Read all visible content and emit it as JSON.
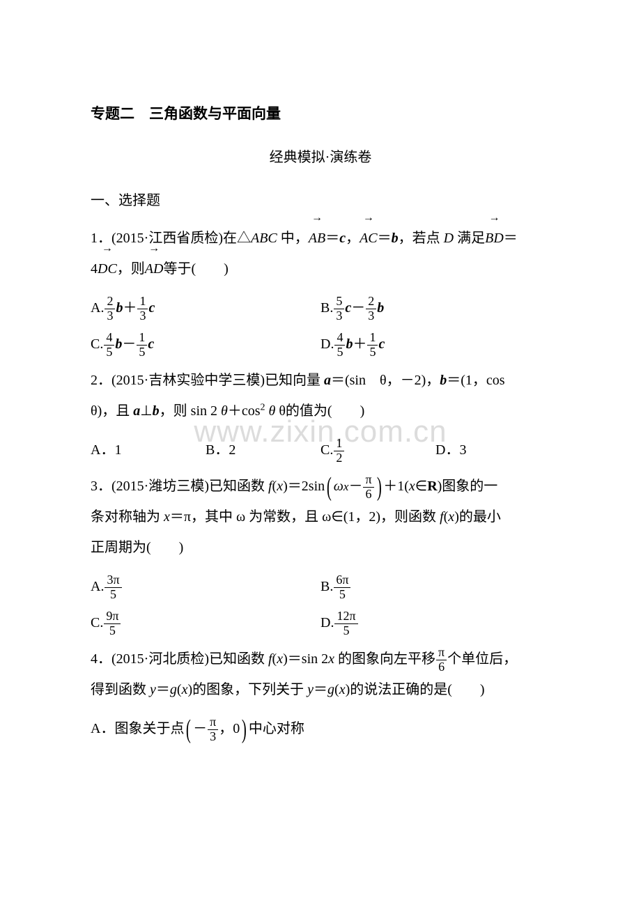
{
  "watermark": "www.zixin.com.cn",
  "title": "专题二　三角函数与平面向量",
  "subtitle": "经典模拟·演练卷",
  "section1": "一、选择题",
  "q1": {
    "prefix": "1．(2015·江西省质检)在△",
    "abc": "ABC",
    "mid1": " 中，",
    "eq1a": "AB",
    "eq1b": "＝",
    "eq1c": "c",
    "comma1": "，",
    "eq2a": "AC",
    "eq2b": "＝",
    "eq2c": "b",
    "comma2": "，若点 ",
    "D": "D",
    "mid2": " 满足",
    "eq3a": "BD",
    "eq3b": "＝",
    "line2a": "4",
    "eq4a": "DC",
    "line2b": "，则",
    "eq5a": "AD",
    "line2c": "等于(　　)",
    "optA": {
      "p": "A.",
      "n1": "2",
      "d1": "3",
      "v1": "b",
      "op": "＋",
      "n2": "1",
      "d2": "3",
      "v2": "c"
    },
    "optB": {
      "p": "B.",
      "n1": "5",
      "d1": "3",
      "v1": "c",
      "op": "－",
      "n2": "2",
      "d2": "3",
      "v2": "b"
    },
    "optC": {
      "p": "C.",
      "n1": "4",
      "d1": "5",
      "v1": "b",
      "op": "－",
      "n2": "1",
      "d2": "5",
      "v2": "c"
    },
    "optD": {
      "p": "D.",
      "n1": "4",
      "d1": "5",
      "v1": "b",
      "op": "＋",
      "n2": "1",
      "d2": "5",
      "v2": "c"
    }
  },
  "q2": {
    "line1a": "2．(2015·吉林实验中学三模)已知向量 ",
    "a": "a",
    "eq1": "＝(sin　θ，－2)，",
    "b": "b",
    "eq2": "＝(1，cos",
    "line2a": " θ)，且 ",
    "perp": "⊥",
    "line2b": "，则 sin 2",
    "theta": " θ",
    "plus": "＋cos",
    "sq": "2",
    "line2c": " θ的值为(　　)",
    "A": "A．1",
    "B": "B．2",
    "Cp": "C.",
    "Cn": "1",
    "Cd": "2",
    "D": "D．3"
  },
  "q3": {
    "line1a": "3．(2015·潍坊三模)已知函数 ",
    "fx": "f",
    "x1": "x",
    "eq": "＝2sin",
    "om": "ω",
    "xin": "x",
    "minus": "－",
    "pn": "π",
    "pd": "6",
    "plus1": "＋1(",
    "xr": "x",
    "inR": "∈",
    "R": "R",
    "close": ")图象的一",
    "line2": "条对称轴为 ",
    "xeq": "x",
    "pi": "＝π，其中 ω 为常数，且 ω∈(1，2)，则函数 ",
    "fx2": "f",
    "x2": "x",
    "tail": "的最小",
    "line3": "正周期为(　　)",
    "A": {
      "p": "A.",
      "n": "3π",
      "d": "5"
    },
    "B": {
      "p": "B.",
      "n": "6π",
      "d": "5"
    },
    "C": {
      "p": "C.",
      "n": "9π",
      "d": "5"
    },
    "D": {
      "p": "D.",
      "n": "12π",
      "d": "5"
    }
  },
  "q4": {
    "line1a": "4．(2015·河北质检)已知函数 ",
    "fx": "f",
    "x": "x",
    "eq": "＝sin 2",
    "x2": "x",
    "mid": " 的图象向左平移",
    "pn": "π",
    "pd": "6",
    "tail": "个单位后，",
    "line2a": "得到函数 ",
    "y": "y",
    "g": "g",
    "xg": "x",
    "mid2": "的图象，下列关于 ",
    "tail2": "的说法正确的是(　　)",
    "Aprefix": "A．图象关于点",
    "An": "π",
    "Ad": "3",
    "Azero": "0",
    "Atail": "中心对称"
  }
}
